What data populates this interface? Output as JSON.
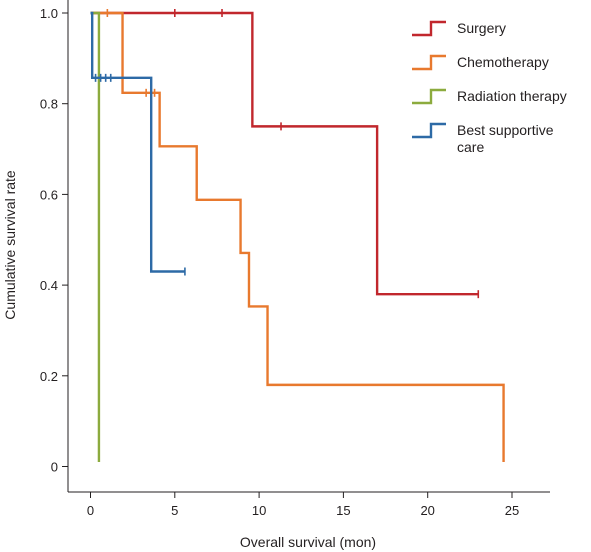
{
  "chart_data": {
    "type": "line",
    "subtype": "kaplan-meier",
    "title": "",
    "xlabel": "Overall survival (mon)",
    "ylabel": "Cumulative survival rate",
    "xlim": [
      -1.3,
      27.3
    ],
    "ylim": [
      -0.045,
      1.0
    ],
    "xticks": [
      0,
      5,
      10,
      15,
      20,
      25
    ],
    "xtick_labels": [
      "0",
      "5",
      "10",
      "15",
      "20",
      "25"
    ],
    "yticks": [
      0,
      0.2,
      0.4,
      0.6,
      0.8,
      1.0
    ],
    "ytick_labels": [
      "0",
      "0.2",
      "0.4",
      "0.6",
      "0.8",
      "1.0"
    ],
    "grid": false,
    "legend_position": "top-right",
    "series": [
      {
        "name": "Surgery",
        "color": "#c1272d",
        "steps": [
          [
            0,
            1.0
          ],
          [
            9.6,
            0.75
          ],
          [
            17,
            0.38
          ],
          [
            23,
            0.38
          ]
        ],
        "censored": [
          [
            5,
            1.0
          ],
          [
            7.8,
            1.0
          ],
          [
            11.3,
            0.75
          ],
          [
            23,
            0.38
          ]
        ]
      },
      {
        "name": "Chemotherapy",
        "color": "#e8792e",
        "steps": [
          [
            0,
            1.0
          ],
          [
            1.9,
            0.824
          ],
          [
            4.1,
            0.706
          ],
          [
            6.3,
            0.588
          ],
          [
            8.9,
            0.471
          ],
          [
            9.4,
            0.353
          ],
          [
            10.5,
            0.18
          ],
          [
            24.5,
            0.18
          ]
        ],
        "end": [
          24.5,
          0.01
        ],
        "censored": [
          [
            1.0,
            1.0
          ],
          [
            3.3,
            0.824
          ],
          [
            3.8,
            0.824
          ]
        ]
      },
      {
        "name": "Radiation therapy",
        "color": "#8cab3e",
        "steps": [
          [
            0,
            1.0
          ],
          [
            0.5,
            1.0
          ]
        ],
        "end": [
          0.5,
          0.01
        ],
        "censored": []
      },
      {
        "name": "Best supportive care",
        "color": "#2d6aa6",
        "steps": [
          [
            0,
            1.0
          ],
          [
            0.1,
            0.857
          ],
          [
            3.6,
            0.43
          ],
          [
            5.6,
            0.43
          ]
        ],
        "censored": [
          [
            0.3,
            0.857
          ],
          [
            0.6,
            0.857
          ],
          [
            0.9,
            0.857
          ],
          [
            1.2,
            0.857
          ],
          [
            5.6,
            0.43
          ]
        ]
      }
    ]
  },
  "legend": {
    "items": [
      {
        "label": "Surgery",
        "color": "#c1272d"
      },
      {
        "label": "Chemotherapy",
        "color": "#e8792e"
      },
      {
        "label": "Radiation therapy",
        "color": "#8cab3e"
      },
      {
        "label": "Best supportive",
        "label_line2": "care",
        "color": "#2d6aa6"
      }
    ]
  }
}
